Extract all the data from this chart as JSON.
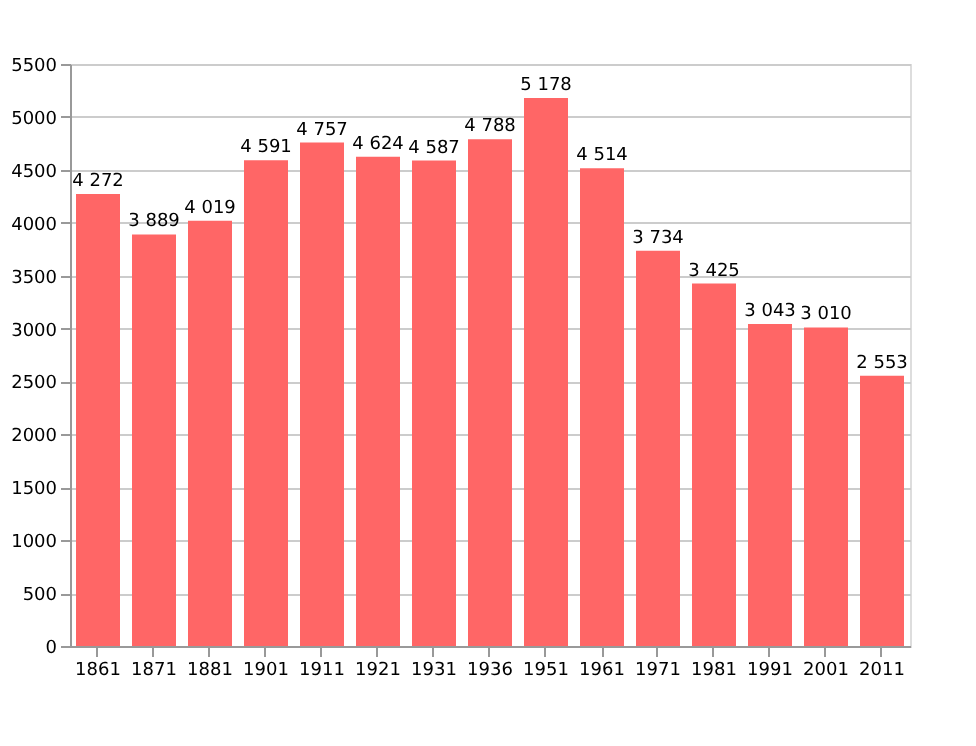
{
  "chart_data": {
    "type": "bar",
    "categories": [
      "1861",
      "1871",
      "1881",
      "1901",
      "1911",
      "1921",
      "1931",
      "1936",
      "1951",
      "1961",
      "1971",
      "1981",
      "1991",
      "2001",
      "2011"
    ],
    "values": [
      4272,
      3889,
      4019,
      4591,
      4757,
      4624,
      4587,
      4788,
      5178,
      4514,
      3734,
      3425,
      3043,
      3010,
      2553
    ],
    "value_labels": [
      "4 272",
      "3 889",
      "4 019",
      "4 591",
      "4 757",
      "4 624",
      "4 587",
      "4 788",
      "5 178",
      "4 514",
      "3 734",
      "3 425",
      "3 043",
      "3 010",
      "2 553"
    ],
    "color": "#ff6666",
    "ylim": [
      0,
      5500
    ],
    "yticks": [
      0,
      500,
      1000,
      1500,
      2000,
      2500,
      3000,
      3500,
      4000,
      4500,
      5000,
      5500
    ],
    "grid": "y"
  }
}
